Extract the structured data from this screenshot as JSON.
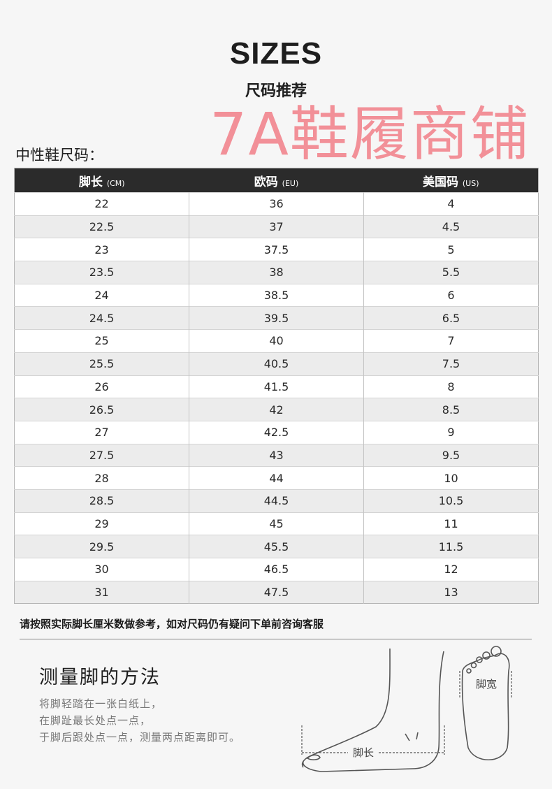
{
  "header": {
    "title": "SIZES",
    "subtitle": "尺码推荐"
  },
  "table_label": "中性鞋尺码：",
  "columns": [
    {
      "label": "脚长",
      "unit": "(CM)"
    },
    {
      "label": "欧码",
      "unit": "(EU)"
    },
    {
      "label": "美国码",
      "unit": "(US)"
    }
  ],
  "rows": [
    [
      "22",
      "36",
      "4"
    ],
    [
      "22.5",
      "37",
      "4.5"
    ],
    [
      "23",
      "37.5",
      "5"
    ],
    [
      "23.5",
      "38",
      "5.5"
    ],
    [
      "24",
      "38.5",
      "6"
    ],
    [
      "24.5",
      "39.5",
      "6.5"
    ],
    [
      "25",
      "40",
      "7"
    ],
    [
      "25.5",
      "40.5",
      "7.5"
    ],
    [
      "26",
      "41.5",
      "8"
    ],
    [
      "26.5",
      "42",
      "8.5"
    ],
    [
      "27",
      "42.5",
      "9"
    ],
    [
      "27.5",
      "43",
      "9.5"
    ],
    [
      "28",
      "44",
      "10"
    ],
    [
      "28.5",
      "44.5",
      "10.5"
    ],
    [
      "29",
      "45",
      "11"
    ],
    [
      "29.5",
      "45.5",
      "11.5"
    ],
    [
      "30",
      "46.5",
      "12"
    ],
    [
      "31",
      "47.5",
      "13"
    ]
  ],
  "watermark": "7A鞋履商铺",
  "note": "请按照实际脚长厘米数做参考，如对尺码仍有疑问下单前咨询客服",
  "measure": {
    "title": "测量脚的方法",
    "lines": [
      "将脚轻踏在一张白纸上，",
      "在脚趾最长处点一点，",
      "于脚后跟处点一点，测量两点距离即可。"
    ],
    "length_label": "脚长",
    "width_label": "脚宽"
  }
}
